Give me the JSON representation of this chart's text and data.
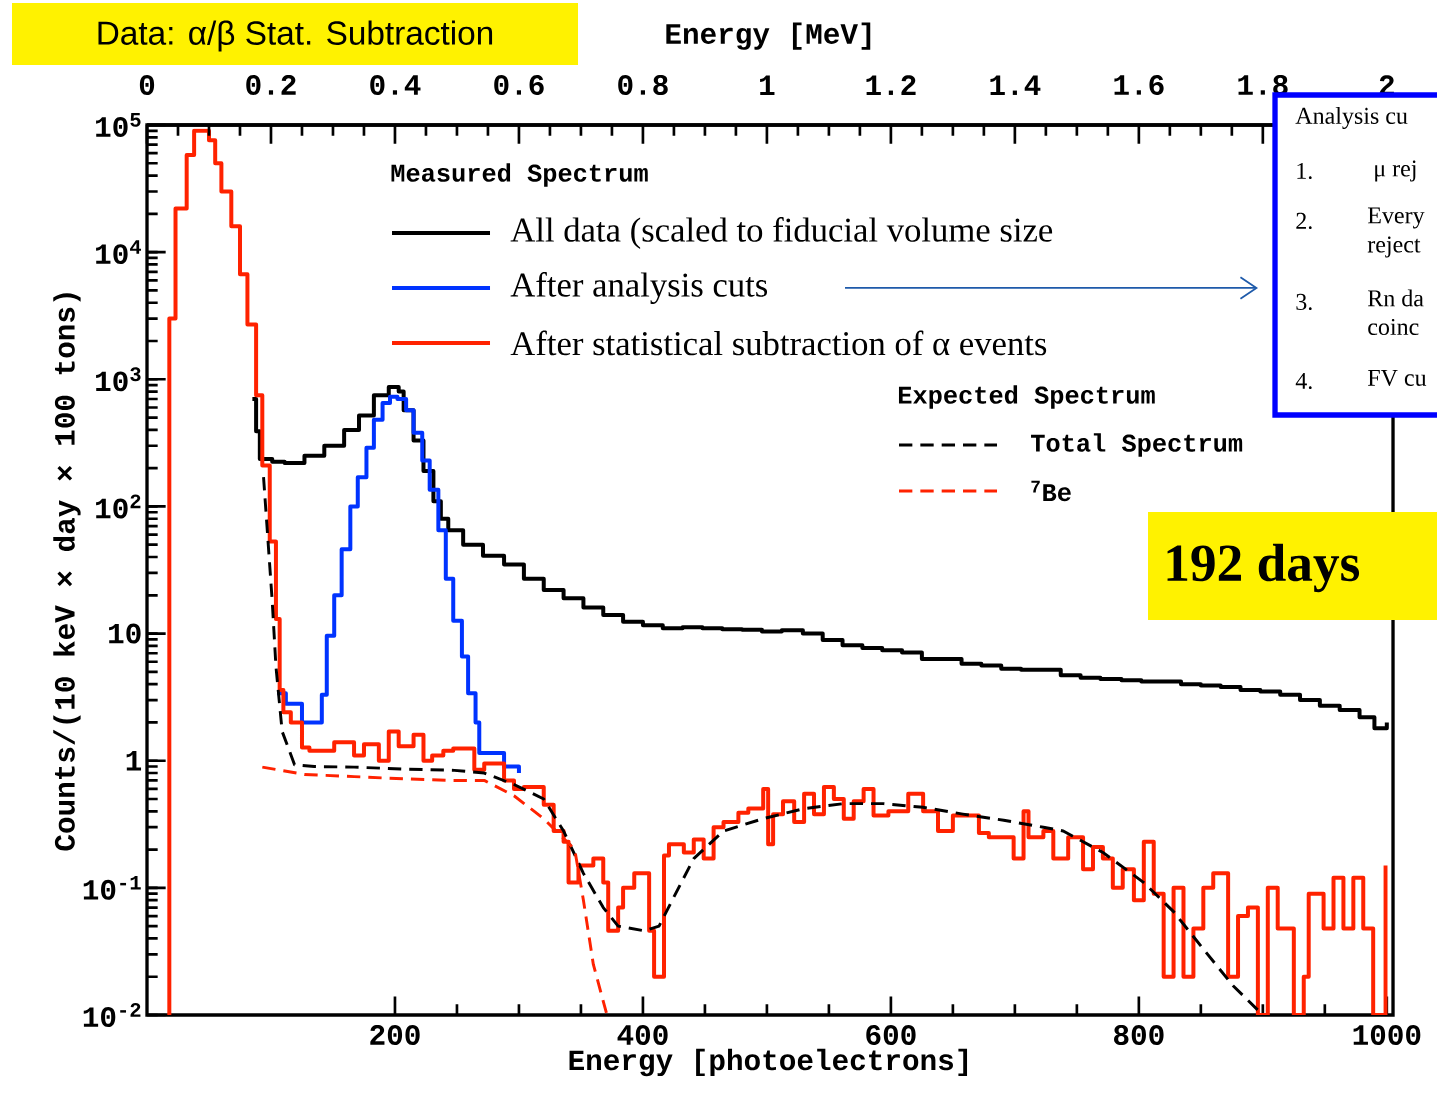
{
  "chart_data": {
    "type": "step",
    "xlabel": "Energy [photoelectrons]",
    "ylabel": "Counts/(10 keV × day × 100 tons)",
    "x2label": "Energy [MeV]",
    "xlim": [
      0,
      1005
    ],
    "xticks": [
      200,
      400,
      600,
      800,
      1000
    ],
    "x2lim": [
      0,
      2.01
    ],
    "x2ticks": [
      0,
      0.2,
      0.4,
      0.6,
      0.8,
      1,
      1.2,
      1.4,
      1.6,
      1.8,
      2
    ],
    "ylim": [
      0.01,
      100000
    ],
    "yticks": [
      {
        "value": 0.01,
        "label": "10$^{-2}$"
      },
      {
        "value": 0.1,
        "label": "10$^{-1}$"
      },
      1,
      10,
      {
        "value": 100,
        "label": "10$^{2}$"
      },
      {
        "value": 1000,
        "label": "10$^{3}$"
      },
      {
        "value": 10000,
        "label": "10$^{4}$"
      },
      {
        "value": 100000,
        "label": "10$^{5}$"
      }
    ],
    "log": "y",
    "legend": "top",
    "annotations": [
      "Data: α/β Stat. Subtraction",
      "Measured Spectrum",
      "Expected Spectrum",
      "192 days",
      "Analysis cu",
      "1.",
      "μ rej",
      "2.",
      "Every",
      "reject",
      "3.",
      "Rn da",
      "coinc",
      "4.",
      "FV cu"
    ],
    "series": [
      {
        "name": "All data (scaled to fiducial volume size",
        "color": "#000000",
        "x": [
          85,
          88,
          91,
          101,
          111,
          127,
          143,
          159,
          171,
          183,
          195,
          203,
          207,
          215,
          223,
          231,
          237,
          243,
          255,
          271,
          288,
          304,
          320,
          336,
          352,
          368,
          384,
          400,
          416,
          432,
          448,
          464,
          480,
          496,
          512,
          529,
          545,
          561,
          577,
          593,
          609,
          625,
          641,
          657,
          673,
          689,
          705,
          721,
          737,
          753,
          769,
          786,
          802,
          818,
          834,
          850,
          866,
          882,
          898,
          914,
          930,
          946,
          962,
          978,
          990,
          1000
        ],
        "values": [
          700,
          390,
          236,
          225,
          220,
          250,
          300,
          400,
          520,
          750,
          870,
          800,
          570,
          330,
          190,
          110,
          80,
          65,
          50,
          41,
          35,
          27,
          22,
          19,
          16,
          14,
          12.4,
          11.6,
          11,
          11.2,
          11,
          10.8,
          10.7,
          10.4,
          10.6,
          10,
          8.9,
          8.1,
          7.7,
          7.4,
          7.1,
          6.3,
          6.3,
          5.8,
          5.6,
          5.3,
          5.2,
          5.2,
          4.7,
          4.5,
          4.4,
          4.3,
          4.2,
          4.2,
          4.0,
          3.9,
          3.8,
          3.6,
          3.5,
          3.3,
          3.0,
          2.7,
          2.5,
          2.2,
          1.8,
          2.0
        ]
      },
      {
        "name": "After analysis cuts",
        "color": "#0033ff",
        "x": [
          105,
          112,
          125,
          141,
          145,
          151,
          157,
          164,
          170,
          177,
          183,
          190,
          196,
          202,
          209,
          215,
          222,
          228,
          235,
          241,
          247,
          254,
          259,
          265,
          268,
          288,
          300
        ],
        "values": [
          3.4,
          2.8,
          2.0,
          3.3,
          9.6,
          20,
          46,
          100,
          170,
          290,
          480,
          650,
          730,
          700,
          570,
          380,
          230,
          135,
          65,
          27,
          12.6,
          6.6,
          3.4,
          2.0,
          1.15,
          0.9,
          0.8
        ]
      },
      {
        "name": "After statistical subtraction of α events",
        "color": "#ff2200",
        "x": [
          17,
          18,
          23,
          32,
          38,
          50,
          55,
          60,
          68,
          75,
          81,
          88,
          93,
          99,
          104,
          107,
          110,
          116,
          125,
          131,
          151,
          167,
          175,
          187,
          195,
          203,
          215,
          223,
          230,
          239,
          247,
          264,
          272,
          288,
          296,
          304,
          320,
          328,
          336,
          340,
          348,
          360,
          368,
          372,
          380,
          384,
          393,
          405,
          409,
          417,
          421,
          433,
          441,
          449,
          457,
          465,
          477,
          485,
          497,
          501,
          505,
          513,
          522,
          530,
          538,
          546,
          554,
          562,
          570,
          578,
          586,
          598,
          614,
          626,
          638,
          650,
          671,
          679,
          699,
          707,
          711,
          723,
          731,
          743,
          755,
          763,
          771,
          779,
          787,
          796,
          804,
          812,
          820,
          828,
          836,
          844,
          852,
          860,
          872,
          880,
          888,
          896,
          904,
          912,
          925,
          933,
          937,
          949,
          957,
          965,
          973,
          981,
          989,
          999
        ],
        "values": [
          0.01,
          3000,
          22000,
          58000,
          90000,
          76000,
          50000,
          30000,
          16000,
          6700,
          2700,
          750,
          210,
          53,
          13,
          3.6,
          2.4,
          2.0,
          1.27,
          1.2,
          1.4,
          1.1,
          1.35,
          1.0,
          1.7,
          1.3,
          1.6,
          1.0,
          1.1,
          1.2,
          1.25,
          0.85,
          0.95,
          0.7,
          0.6,
          0.62,
          0.45,
          0.28,
          0.23,
          0.11,
          0.15,
          0.17,
          0.11,
          0.046,
          0.07,
          0.1,
          0.13,
          0.046,
          0.02,
          0.18,
          0.22,
          0.19,
          0.24,
          0.17,
          0.3,
          0.33,
          0.39,
          0.42,
          0.6,
          0.22,
          0.38,
          0.48,
          0.33,
          0.55,
          0.38,
          0.62,
          0.5,
          0.35,
          0.48,
          0.6,
          0.37,
          0.4,
          0.55,
          0.4,
          0.28,
          0.37,
          0.27,
          0.25,
          0.17,
          0.4,
          0.25,
          0.28,
          0.17,
          0.25,
          0.14,
          0.21,
          0.17,
          0.1,
          0.14,
          0.08,
          0.23,
          0.09,
          0.02,
          0.1,
          0.02,
          0.048,
          0.1,
          0.13,
          0.02,
          0.06,
          0.07,
          0.01,
          0.1,
          0.048,
          0.01,
          0.02,
          0.09,
          0.048,
          0.12,
          0.048,
          0.12,
          0.048,
          0.01,
          0.15
        ]
      },
      {
        "name": "Total Spectrum",
        "type": "line",
        "line_style": "dashed",
        "color": "#000000",
        "x": [
          94,
          101,
          104,
          109,
          119,
          135,
          167,
          207,
          248,
          272,
          296,
          320,
          336,
          352,
          368,
          380,
          401,
          413,
          425,
          441,
          465,
          497,
          530,
          562,
          594,
          626,
          658,
          691,
          723,
          739,
          771,
          804,
          828,
          852,
          876,
          900
        ],
        "values": [
          170,
          18,
          5.5,
          1.7,
          0.93,
          0.9,
          0.89,
          0.86,
          0.84,
          0.8,
          0.65,
          0.5,
          0.28,
          0.13,
          0.07,
          0.05,
          0.046,
          0.05,
          0.085,
          0.17,
          0.28,
          0.35,
          0.42,
          0.46,
          0.46,
          0.43,
          0.38,
          0.34,
          0.3,
          0.28,
          0.19,
          0.11,
          0.065,
          0.033,
          0.017,
          0.01
        ]
      },
      {
        "name": "$^{7}$Be",
        "type": "line",
        "line_style": "dashed",
        "color": "#ff2200",
        "x": [
          93,
          127,
          167,
          207,
          247,
          272,
          296,
          320,
          345,
          352,
          360,
          371
        ],
        "values": [
          0.89,
          0.78,
          0.75,
          0.72,
          0.7,
          0.7,
          0.53,
          0.35,
          0.2,
          0.08,
          0.025,
          0.01
        ]
      }
    ]
  }
}
